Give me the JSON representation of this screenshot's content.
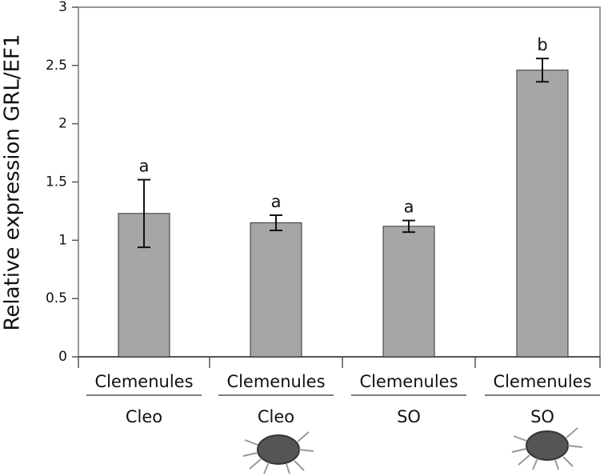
{
  "chart_data": {
    "type": "bar",
    "y_label": "Relative expression GRL/EF1",
    "categories": [
      "Clemenules",
      "Clemenules",
      "Clemenules",
      "Clemenules"
    ],
    "subcategories": [
      "Cleo",
      "Cleo",
      "SO",
      "SO"
    ],
    "values": [
      1.23,
      1.15,
      1.12,
      2.46
    ],
    "errors": [
      0.29,
      0.065,
      0.05,
      0.1
    ],
    "annotations": [
      "a",
      "a",
      "a",
      "b"
    ],
    "color": "#a6a6a6",
    "ylim": [
      0,
      3
    ],
    "yticks": [
      0,
      0.5,
      1,
      1.5,
      2,
      2.5,
      3
    ]
  }
}
